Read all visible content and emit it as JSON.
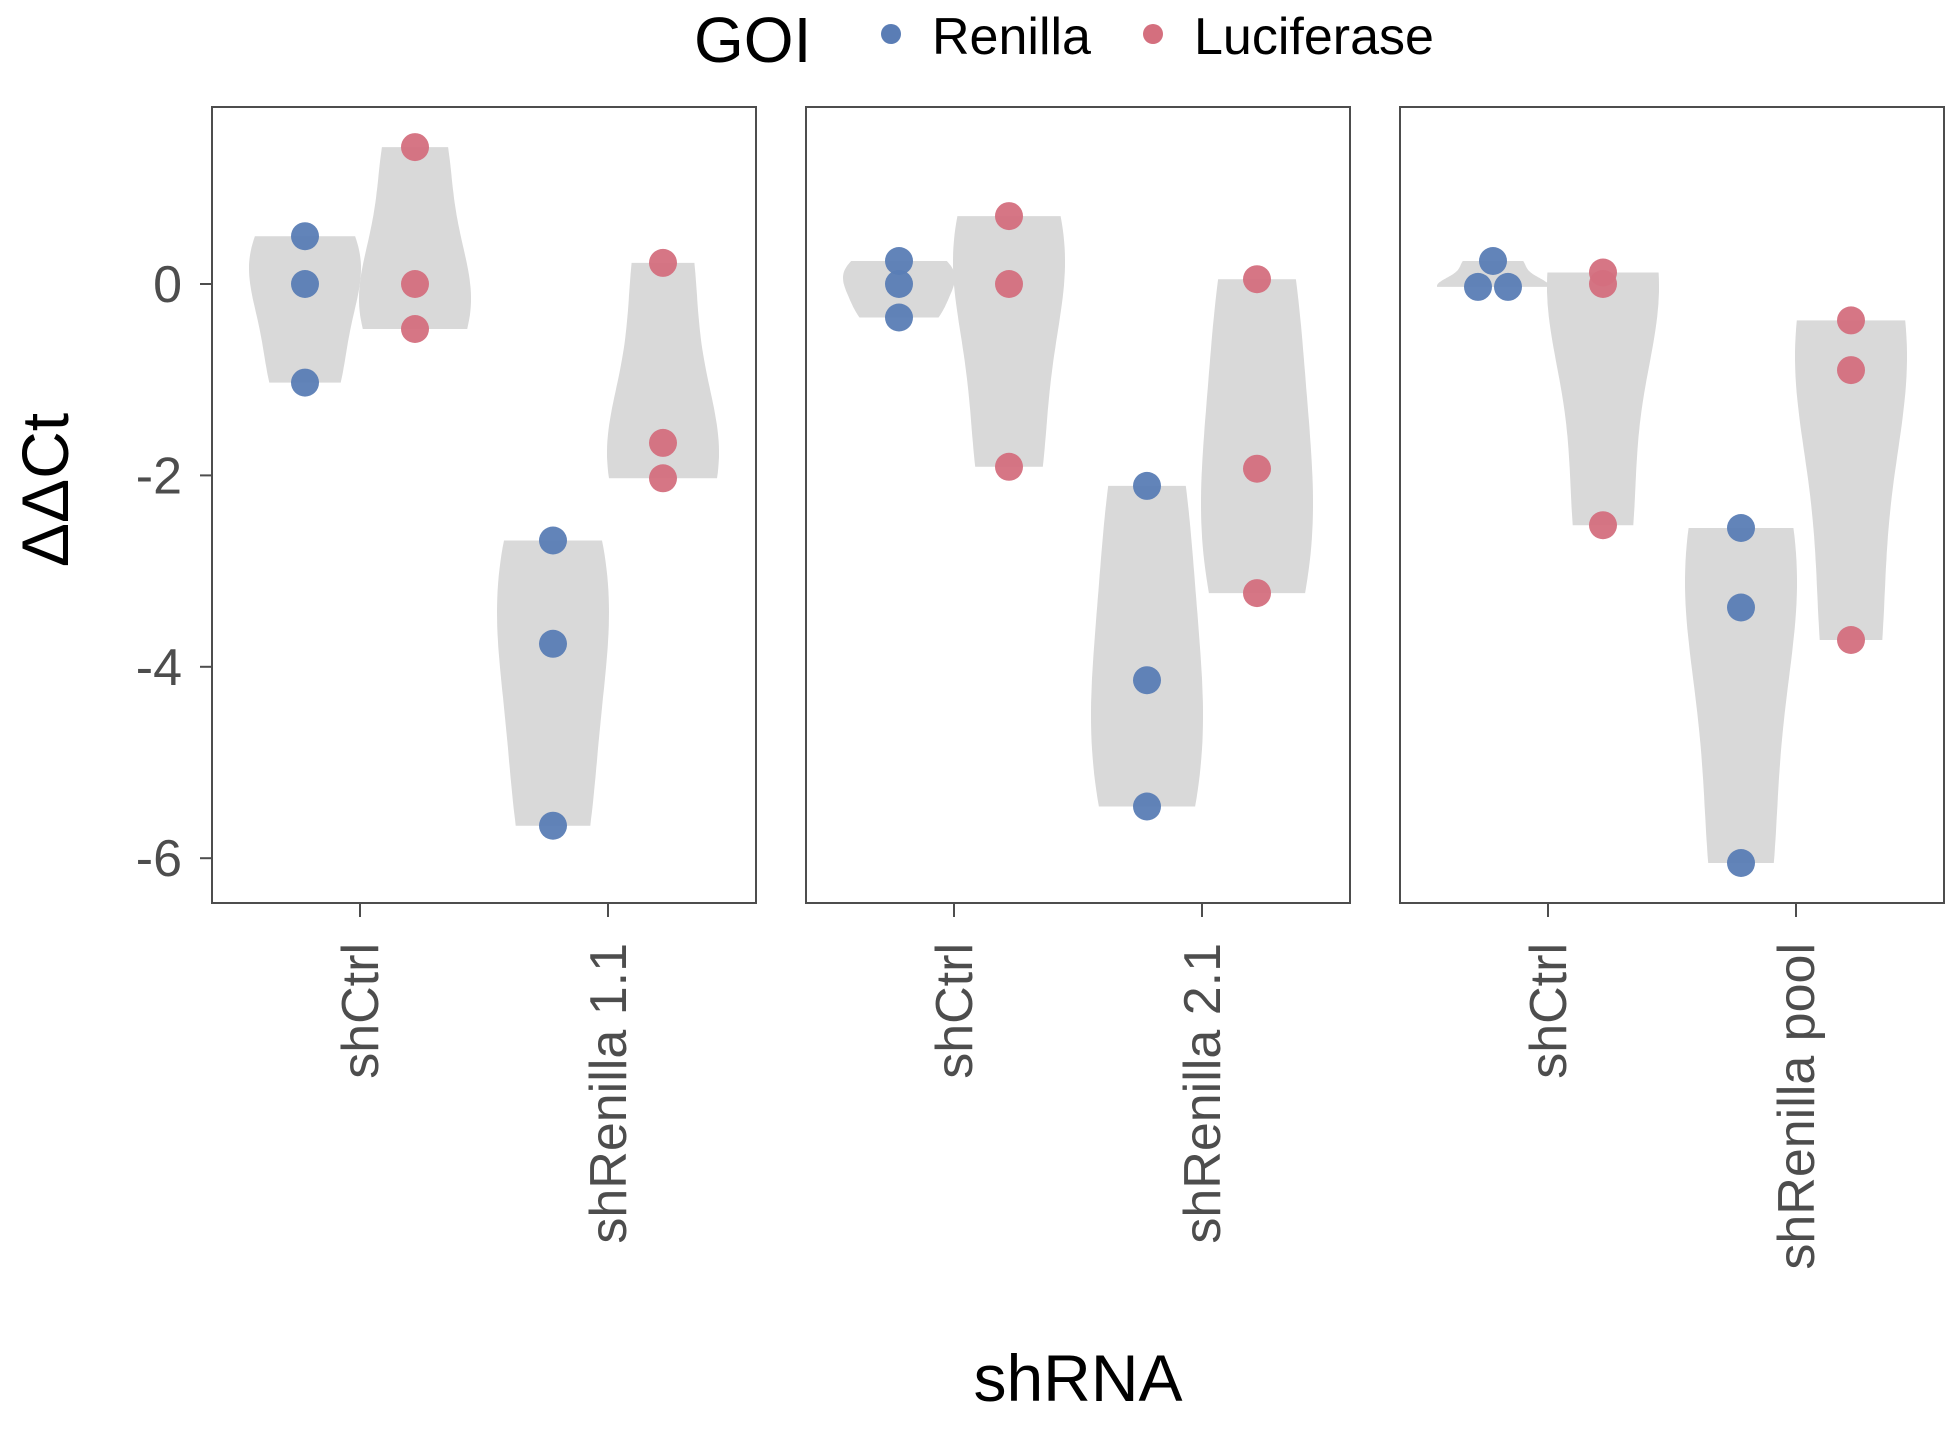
{
  "chart_data": {
    "type": "violin",
    "ylabel": "ΔΔCt",
    "xlabel": "shRNA",
    "ylim": [
      -6.5,
      1.8
    ],
    "yticks": [
      0,
      -2,
      -4,
      -6
    ],
    "ytick_labels": [
      "0",
      "-2",
      "-4",
      "-6"
    ],
    "legend": {
      "title": "GOI",
      "position": "top",
      "entries": [
        {
          "name": "Renilla",
          "color": "#5a7db5"
        },
        {
          "name": "Luciferase",
          "color": "#d46f7e"
        }
      ]
    },
    "violin_color": "#d9d9d9",
    "panels": [
      {
        "categories": [
          "shCtrl",
          "shRenilla 1.1"
        ],
        "series": [
          {
            "name": "Renilla",
            "points": [
              [
                0.5,
                0.0,
                -1.03
              ],
              [
                -2.68,
                -3.76,
                -5.66
              ]
            ]
          },
          {
            "name": "Luciferase",
            "points": [
              [
                1.43,
                0.0,
                -0.47
              ],
              [
                0.22,
                -1.66,
                -2.03
              ]
            ]
          }
        ]
      },
      {
        "categories": [
          "shCtrl",
          "shRenilla 2.1"
        ],
        "series": [
          {
            "name": "Renilla",
            "points": [
              [
                0.24,
                0.0,
                -0.35
              ],
              [
                -2.11,
                -4.14,
                -5.46
              ]
            ]
          },
          {
            "name": "Luciferase",
            "points": [
              [
                0.71,
                0.0,
                -1.91
              ],
              [
                0.05,
                -1.93,
                -3.23
              ]
            ]
          }
        ]
      },
      {
        "categories": [
          "shCtrl",
          "shRenilla pool"
        ],
        "series": [
          {
            "name": "Renilla",
            "points": [
              [
                0.24,
                -0.03,
                -0.03
              ],
              [
                -2.55,
                -3.38,
                -6.05
              ]
            ]
          },
          {
            "name": "Luciferase",
            "points": [
              [
                0.12,
                0.0,
                -2.52
              ],
              [
                -0.38,
                -0.9,
                -3.72
              ]
            ]
          }
        ]
      }
    ]
  }
}
